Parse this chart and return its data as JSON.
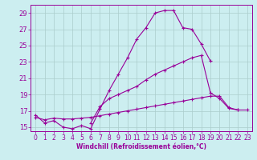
{
  "xlabel": "Windchill (Refroidissement éolien,°C)",
  "background_color": "#cceef0",
  "grid_color": "#aacccc",
  "line_color": "#990099",
  "x": [
    0,
    1,
    2,
    3,
    4,
    5,
    6,
    7,
    8,
    9,
    10,
    11,
    12,
    13,
    14,
    15,
    16,
    17,
    18,
    19,
    20,
    21,
    22,
    23
  ],
  "line1": [
    16.5,
    15.5,
    15.8,
    15.0,
    14.8,
    15.2,
    14.8,
    17.2,
    19.5,
    21.5,
    23.5,
    25.8,
    27.2,
    29.0,
    29.3,
    29.3,
    27.2,
    27.0,
    25.2,
    23.1,
    null,
    null,
    null,
    null
  ],
  "line2": [
    null,
    null,
    null,
    null,
    null,
    null,
    15.5,
    17.5,
    18.5,
    19.0,
    19.5,
    20.0,
    20.8,
    21.5,
    22.0,
    22.5,
    23.0,
    23.5,
    23.8,
    19.2,
    18.5,
    17.3,
    17.1,
    null
  ],
  "line3": [
    16.2,
    15.9,
    16.1,
    16.0,
    16.0,
    16.1,
    16.2,
    16.4,
    16.6,
    16.8,
    17.0,
    17.2,
    17.4,
    17.6,
    17.8,
    18.0,
    18.2,
    18.4,
    18.6,
    18.8,
    18.8,
    17.4,
    17.1,
    17.1
  ],
  "ylim": [
    14.5,
    30.0
  ],
  "xlim": [
    -0.5,
    23.5
  ],
  "yticks": [
    15,
    17,
    19,
    21,
    23,
    25,
    27,
    29
  ],
  "xticks": [
    0,
    1,
    2,
    3,
    4,
    5,
    6,
    7,
    8,
    9,
    10,
    11,
    12,
    13,
    14,
    15,
    16,
    17,
    18,
    19,
    20,
    21,
    22,
    23
  ]
}
